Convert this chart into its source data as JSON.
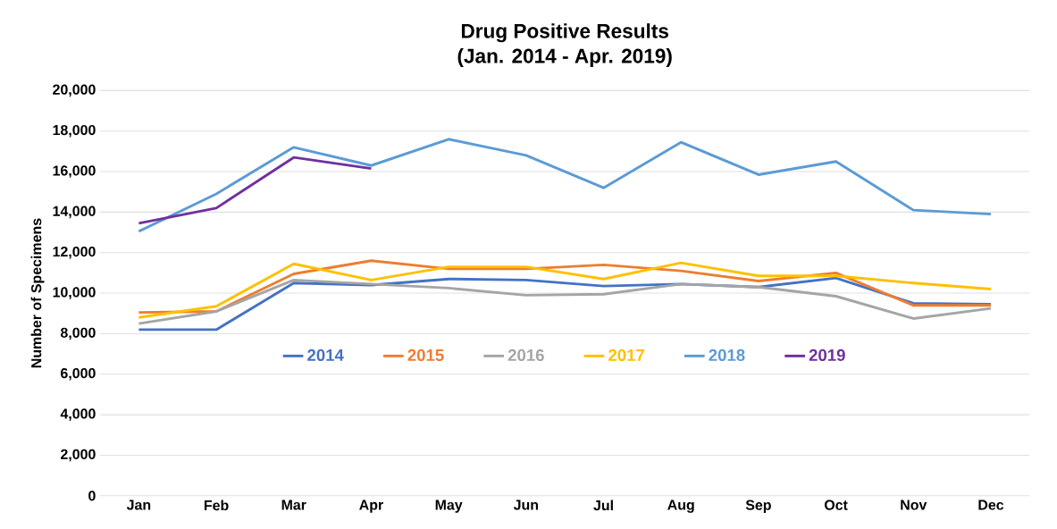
{
  "chart_data": {
    "type": "line",
    "title": "Drug Positive Results",
    "subtitle": "(Jan. 2014 - Apr. 2019)",
    "ylabel": "Number of Specimens",
    "categories": [
      "Jan",
      "Feb",
      "Mar",
      "Apr",
      "May",
      "Jun",
      "Jul",
      "Aug",
      "Sep",
      "Oct",
      "Nov",
      "Dec"
    ],
    "series": [
      {
        "name": "2014",
        "color": "#4472c4",
        "values": [
          8200,
          8200,
          10500,
          10400,
          10700,
          10650,
          10350,
          10450,
          10300,
          10750,
          9500,
          9450
        ]
      },
      {
        "name": "2015",
        "color": "#ed7d31",
        "values": [
          9050,
          9100,
          10950,
          11600,
          11200,
          11200,
          11400,
          11100,
          10600,
          11000,
          9400,
          9400
        ]
      },
      {
        "name": "2016",
        "color": "#a5a5a5",
        "values": [
          8500,
          9100,
          10650,
          10450,
          10250,
          9900,
          9950,
          10450,
          10300,
          9850,
          8750,
          9250
        ]
      },
      {
        "name": "2017",
        "color": "#ffc000",
        "values": [
          8800,
          9350,
          11450,
          10650,
          11300,
          11300,
          10700,
          11500,
          10850,
          10850,
          10500,
          10200
        ]
      },
      {
        "name": "2018",
        "color": "#5b9bd5",
        "values": [
          13050,
          14900,
          17200,
          16300,
          17600,
          16800,
          15200,
          17450,
          15850,
          16500,
          14100,
          13900
        ]
      },
      {
        "name": "2019",
        "color": "#7030a0",
        "values": [
          13450,
          14200,
          16700,
          16150,
          null,
          null,
          null,
          null,
          null,
          null,
          null,
          null
        ]
      }
    ],
    "ylim": [
      0,
      20000
    ],
    "yticks": [
      {
        "value": 0,
        "label": "0"
      },
      {
        "value": 2000,
        "label": "2,000"
      },
      {
        "value": 4000,
        "label": "4,000"
      },
      {
        "value": 6000,
        "label": "6,000"
      },
      {
        "value": 8000,
        "label": "8,000"
      },
      {
        "value": 10000,
        "label": "10,000"
      },
      {
        "value": 12000,
        "label": "12,000"
      },
      {
        "value": 14000,
        "label": "14,000"
      },
      {
        "value": 16000,
        "label": "16,000"
      },
      {
        "value": 18000,
        "label": "18,000"
      },
      {
        "value": 20000,
        "label": "20,000"
      }
    ],
    "grid": "y",
    "legend": "center",
    "marker": "none",
    "line_style": "solid"
  }
}
